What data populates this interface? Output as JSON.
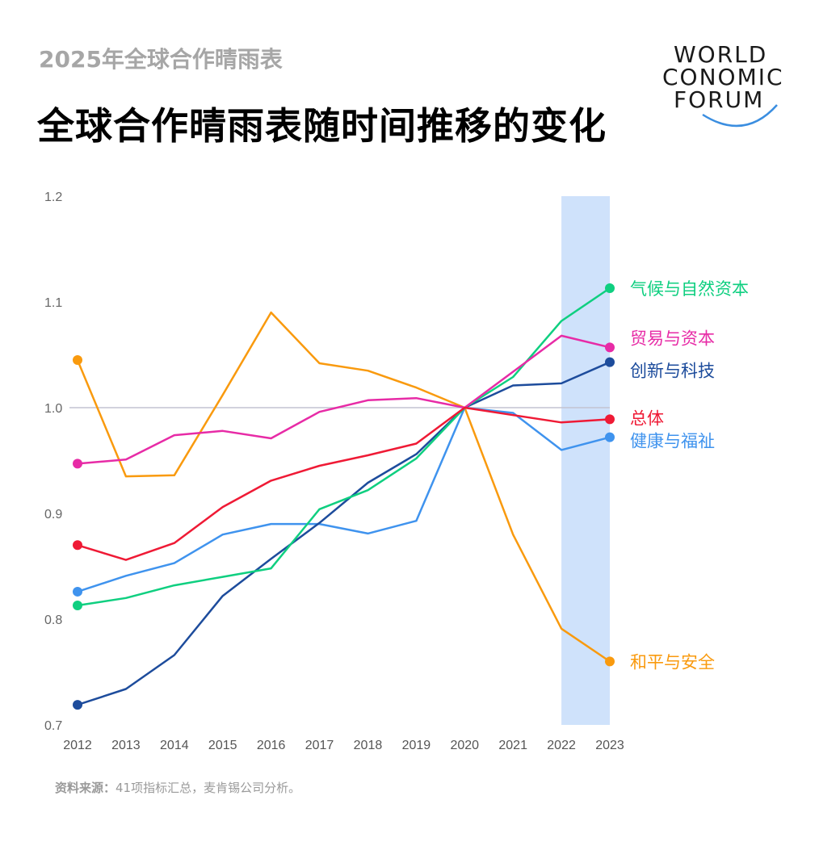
{
  "header": {
    "subtitle": "2025年全球合作晴雨表",
    "title": "全球合作晴雨表随时间推移的变化"
  },
  "logo": {
    "line1": "WORLD",
    "line2": "CONOMIC",
    "line3": "FORUM",
    "accent_color": "#3b8ee0"
  },
  "source": {
    "label": "资料来源：",
    "text": "41项指标汇总，麦肯锡公司分析。"
  },
  "chart_data": {
    "type": "line",
    "x": [
      2012,
      2013,
      2014,
      2015,
      2016,
      2017,
      2018,
      2019,
      2020,
      2021,
      2022,
      2023
    ],
    "ylim": [
      0.7,
      1.2
    ],
    "yticks": [
      0.7,
      0.8,
      0.9,
      1.0,
      1.1,
      1.2
    ],
    "ytick_labels": [
      "0.7",
      "0.8",
      "0.9",
      "1.0",
      "1.1",
      "1.2"
    ],
    "reference_line": 1.0,
    "highlight_range": [
      2022,
      2023
    ],
    "highlight_color": "#cfe2fb",
    "grid": false,
    "series": [
      {
        "name": "和平与安全",
        "color": "#f99a0e",
        "values": [
          1.045,
          0.935,
          0.936,
          1.012,
          1.09,
          1.042,
          1.035,
          1.019,
          1.0,
          0.88,
          0.791,
          0.76
        ]
      },
      {
        "name": "健康与福祉",
        "color": "#3f93ee",
        "values": [
          0.826,
          0.841,
          0.853,
          0.88,
          0.89,
          0.89,
          0.881,
          0.893,
          1.0,
          0.995,
          0.96,
          0.972
        ]
      },
      {
        "name": "创新与科技",
        "color": "#1d4c9c",
        "values": [
          0.719,
          0.734,
          0.766,
          0.822,
          0.857,
          0.891,
          0.929,
          0.956,
          1.0,
          1.021,
          1.023,
          1.043
        ]
      },
      {
        "name": "气候与自然资本",
        "color": "#0fcf80",
        "values": [
          0.813,
          0.82,
          0.832,
          0.84,
          0.848,
          0.904,
          0.922,
          0.952,
          1.0,
          1.029,
          1.082,
          1.113
        ]
      },
      {
        "name": "贸易与资本",
        "color": "#e72ba6",
        "values": [
          0.947,
          0.951,
          0.974,
          0.978,
          0.971,
          0.996,
          1.007,
          1.009,
          1.0,
          1.034,
          1.068,
          1.057
        ]
      },
      {
        "name": "总体",
        "color": "#ef1a35",
        "values": [
          0.87,
          0.856,
          0.872,
          0.906,
          0.931,
          0.945,
          0.955,
          0.966,
          1.0,
          0.993,
          0.986,
          0.989
        ]
      }
    ]
  }
}
